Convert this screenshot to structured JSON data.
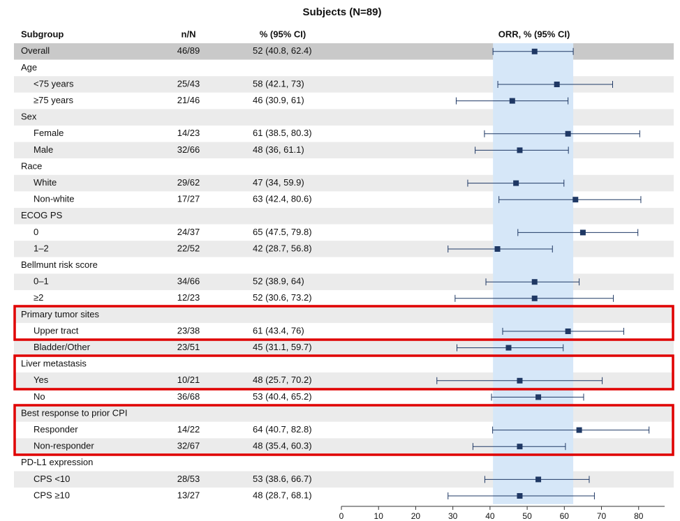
{
  "chart_data": {
    "type": "forest",
    "title": "Subjects (N=89)",
    "columns": [
      "Subgroup",
      "n/N",
      "% (95% CI)",
      "ORR, % (95% CI)"
    ],
    "color": "#1f3864",
    "xlim": [
      0,
      87
    ],
    "xticks": [
      0,
      10,
      20,
      30,
      40,
      50,
      60,
      70,
      80
    ],
    "rows": [
      {
        "label": "Overall",
        "n": "46/89",
        "value_label": "52 (40.8, 62.4)",
        "estimate": 52,
        "lower": 40.8,
        "upper": 62.4
      },
      {
        "label": "Age"
      },
      {
        "label": "<75 years",
        "n": "25/43",
        "value_label": "58 (42.1, 73)",
        "estimate": 58,
        "lower": 42.1,
        "upper": 73
      },
      {
        "label": "≥75 years",
        "n": "21/46",
        "value_label": "46 (30.9, 61)",
        "estimate": 46,
        "lower": 30.9,
        "upper": 61
      },
      {
        "label": "Sex"
      },
      {
        "label": "Female",
        "n": "14/23",
        "value_label": "61 (38.5, 80.3)",
        "estimate": 61,
        "lower": 38.5,
        "upper": 80.3
      },
      {
        "label": "Male",
        "n": "32/66",
        "value_label": "48 (36, 61.1)",
        "estimate": 48,
        "lower": 36,
        "upper": 61.1
      },
      {
        "label": "Race"
      },
      {
        "label": "White",
        "n": "29/62",
        "value_label": "47 (34, 59.9)",
        "estimate": 47,
        "lower": 34,
        "upper": 59.9
      },
      {
        "label": "Non-white",
        "n": "17/27",
        "value_label": "63 (42.4, 80.6)",
        "estimate": 63,
        "lower": 42.4,
        "upper": 80.6
      },
      {
        "label": "ECOG PS"
      },
      {
        "label": "0",
        "n": "24/37",
        "value_label": "65 (47.5, 79.8)",
        "estimate": 65,
        "lower": 47.5,
        "upper": 79.8
      },
      {
        "label": "1–2",
        "n": "22/52",
        "value_label": "42 (28.7, 56.8)",
        "estimate": 42,
        "lower": 28.7,
        "upper": 56.8
      },
      {
        "label": "Bellmunt risk score"
      },
      {
        "label": "0–1",
        "n": "34/66",
        "value_label": "52 (38.9, 64)",
        "estimate": 52,
        "lower": 38.9,
        "upper": 64
      },
      {
        "label": "≥2",
        "n": "12/23",
        "value_label": "52 (30.6, 73.2)",
        "estimate": 52,
        "lower": 30.6,
        "upper": 73.2
      },
      {
        "label": "Primary tumor sites"
      },
      {
        "label": "Upper tract",
        "n": "23/38",
        "value_label": "61 (43.4, 76)",
        "estimate": 61,
        "lower": 43.4,
        "upper": 76
      },
      {
        "label": "Bladder/Other",
        "n": "23/51",
        "value_label": "45 (31.1, 59.7)",
        "estimate": 45,
        "lower": 31.1,
        "upper": 59.7
      },
      {
        "label": "Liver metastasis"
      },
      {
        "label": "Yes",
        "n": "10/21",
        "value_label": "48 (25.7, 70.2)",
        "estimate": 48,
        "lower": 25.7,
        "upper": 70.2
      },
      {
        "label": "No",
        "n": "36/68",
        "value_label": "53 (40.4, 65.2)",
        "estimate": 53,
        "lower": 40.4,
        "upper": 65.2
      },
      {
        "label": "Best response to prior CPI"
      },
      {
        "label": "Responder",
        "n": "14/22",
        "value_label": "64 (40.7, 82.8)",
        "estimate": 64,
        "lower": 40.7,
        "upper": 82.8
      },
      {
        "label": "Non-responder",
        "n": "32/67",
        "value_label": "48 (35.4, 60.3)",
        "estimate": 48,
        "lower": 35.4,
        "upper": 60.3
      },
      {
        "label": "PD-L1 expression"
      },
      {
        "label": "CPS <10",
        "n": "28/53",
        "value_label": "53 (38.6, 66.7)",
        "estimate": 53,
        "lower": 38.6,
        "upper": 66.7
      },
      {
        "label": "CPS ≥10",
        "n": "13/27",
        "value_label": "48 (28.7, 68.1)",
        "estimate": 48,
        "lower": 28.7,
        "upper": 68.1
      }
    ]
  }
}
